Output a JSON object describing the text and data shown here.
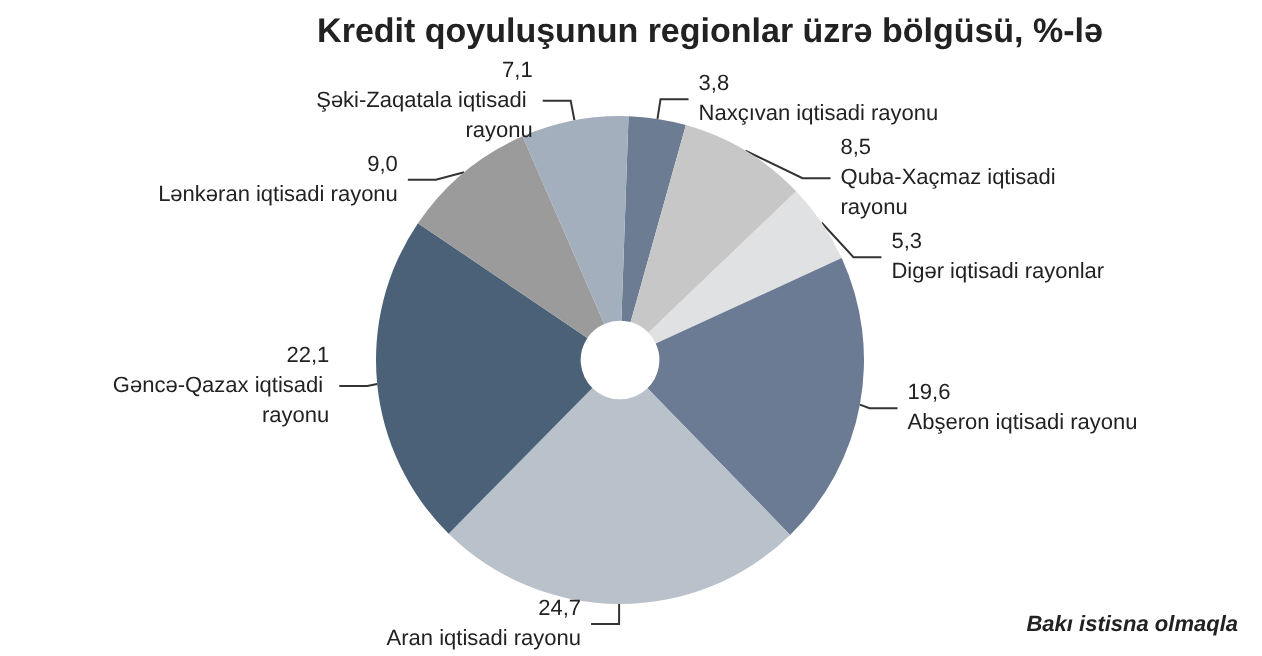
{
  "chart_data": {
    "type": "donut",
    "title": "Kredit qoyuluşunun regionlar üzrə bölgüsü, %-lə",
    "categories": [
      "Naxçıvan iqtisadi rayonu",
      "Quba-Xaçmaz iqtisadi rayonu",
      "Digər iqtisadi rayonlar",
      "Abşeron iqtisadi rayonu",
      "Aran iqtisadi rayonu",
      "Gəncə-Qazax iqtisadi rayonu",
      "Lənkəran iqtisadi rayonu",
      "Şəki-Zaqatala iqtisadi rayonu"
    ],
    "values": [
      3.8,
      8.5,
      5.3,
      19.6,
      24.7,
      22.1,
      9.0,
      7.1
    ],
    "value_labels": [
      "3,8",
      "8,5",
      "5,3",
      "19,6",
      "24,7",
      "22,1",
      "9,0",
      "7,1"
    ],
    "colors": [
      "#6c7d93",
      "#c6c7c6",
      "#e0e1e3",
      "#6a7b93",
      "#b9c1cb",
      "#4a6178",
      "#9a9b9a",
      "#a4afbd"
    ],
    "annotations": [
      "Bakı istisna olmaqla"
    ],
    "legend": false
  }
}
